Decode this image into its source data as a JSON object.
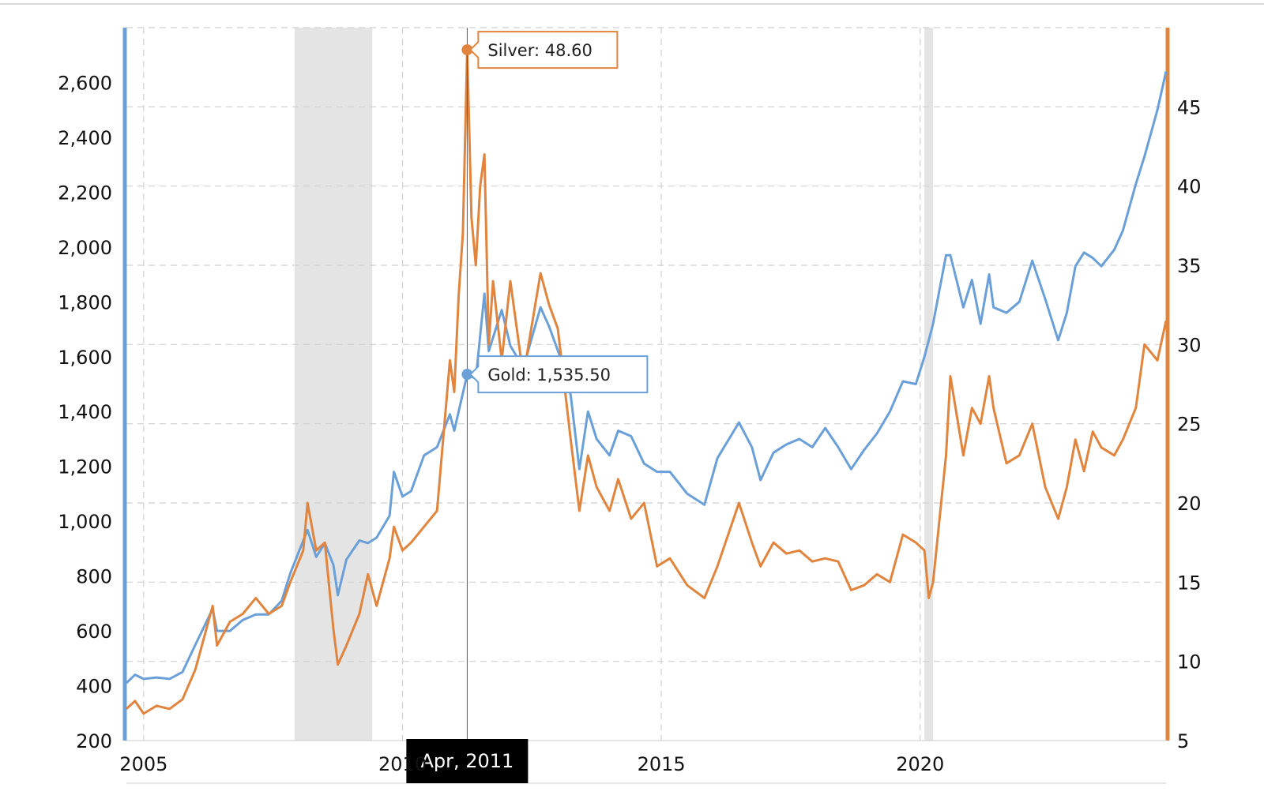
{
  "chart_data": {
    "type": "line",
    "title": "",
    "x_axis": {
      "tick_labels": [
        "2005",
        "2010",
        "2015",
        "2020"
      ],
      "range": [
        "2004-09",
        "2024-10"
      ]
    },
    "y_axis_left": {
      "series": "Gold",
      "range": [
        200,
        2800
      ],
      "ticks": [
        200,
        400,
        600,
        800,
        1000,
        1200,
        1400,
        1600,
        1800,
        2000,
        2200,
        2400,
        2600
      ],
      "tick_labels": [
        "200",
        "400",
        "600",
        "800",
        "1,000",
        "1,200",
        "1,400",
        "1,600",
        "1,800",
        "2,000",
        "2,200",
        "2,400",
        "2,600"
      ]
    },
    "y_axis_right": {
      "series": "Silver",
      "range": [
        5,
        50
      ],
      "ticks": [
        5,
        10,
        15,
        20,
        25,
        30,
        35,
        40,
        45
      ],
      "tick_labels": [
        "5",
        "10",
        "15",
        "20",
        "25",
        "30",
        "35",
        "40",
        "45"
      ]
    },
    "grid": true,
    "recession_shading": [
      {
        "start": "2007-12",
        "end": "2009-06"
      },
      {
        "start": "2020-02",
        "end": "2020-04"
      }
    ],
    "colors": {
      "gold": "#6a9fd8",
      "silver": "#e0843e",
      "shading": "#e4e4e4",
      "grid": "#d0d0d0"
    },
    "crosshair": {
      "date": "2011-04",
      "label": "Apr, 2011",
      "tooltips": [
        {
          "series": "Silver",
          "text": "Silver: 48.60",
          "value": 48.6
        },
        {
          "series": "Gold",
          "text": "Gold: 1,535.50",
          "value": 1535.5
        }
      ]
    },
    "series": [
      {
        "name": "Gold",
        "axis": "left",
        "points": [
          [
            "2004-09",
            410
          ],
          [
            "2004-11",
            440
          ],
          [
            "2005-01",
            425
          ],
          [
            "2005-04",
            430
          ],
          [
            "2005-07",
            425
          ],
          [
            "2005-10",
            450
          ],
          [
            "2006-01",
            550
          ],
          [
            "2006-05",
            680
          ],
          [
            "2006-06",
            600
          ],
          [
            "2006-09",
            600
          ],
          [
            "2006-12",
            640
          ],
          [
            "2007-03",
            660
          ],
          [
            "2007-06",
            660
          ],
          [
            "2007-09",
            710
          ],
          [
            "2007-11",
            810
          ],
          [
            "2008-02",
            930
          ],
          [
            "2008-03",
            968
          ],
          [
            "2008-05",
            870
          ],
          [
            "2008-07",
            920
          ],
          [
            "2008-09",
            840
          ],
          [
            "2008-10",
            730
          ],
          [
            "2008-12",
            860
          ],
          [
            "2009-03",
            930
          ],
          [
            "2009-05",
            920
          ],
          [
            "2009-07",
            940
          ],
          [
            "2009-10",
            1020
          ],
          [
            "2009-11",
            1180
          ],
          [
            "2010-01",
            1090
          ],
          [
            "2010-03",
            1110
          ],
          [
            "2010-06",
            1240
          ],
          [
            "2010-09",
            1270
          ],
          [
            "2010-12",
            1390
          ],
          [
            "2011-01",
            1330
          ],
          [
            "2011-04",
            1535.5
          ],
          [
            "2011-06",
            1520
          ],
          [
            "2011-08",
            1830
          ],
          [
            "2011-09",
            1620
          ],
          [
            "2011-12",
            1770
          ],
          [
            "2012-02",
            1640
          ],
          [
            "2012-05",
            1560
          ],
          [
            "2012-09",
            1780
          ],
          [
            "2012-11",
            1710
          ],
          [
            "2013-02",
            1580
          ],
          [
            "2013-04",
            1460
          ],
          [
            "2013-06",
            1190
          ],
          [
            "2013-08",
            1400
          ],
          [
            "2013-10",
            1300
          ],
          [
            "2014-01",
            1240
          ],
          [
            "2014-03",
            1330
          ],
          [
            "2014-06",
            1310
          ],
          [
            "2014-09",
            1210
          ],
          [
            "2014-12",
            1180
          ],
          [
            "2015-03",
            1180
          ],
          [
            "2015-07",
            1100
          ],
          [
            "2015-11",
            1060
          ],
          [
            "2016-02",
            1230
          ],
          [
            "2016-07",
            1360
          ],
          [
            "2016-10",
            1270
          ],
          [
            "2016-12",
            1150
          ],
          [
            "2017-03",
            1250
          ],
          [
            "2017-06",
            1280
          ],
          [
            "2017-09",
            1300
          ],
          [
            "2017-12",
            1270
          ],
          [
            "2018-03",
            1340
          ],
          [
            "2018-06",
            1270
          ],
          [
            "2018-09",
            1190
          ],
          [
            "2018-12",
            1260
          ],
          [
            "2019-03",
            1320
          ],
          [
            "2019-06",
            1400
          ],
          [
            "2019-09",
            1510
          ],
          [
            "2019-12",
            1500
          ],
          [
            "2020-02",
            1600
          ],
          [
            "2020-04",
            1720
          ],
          [
            "2020-07",
            1970
          ],
          [
            "2020-08",
            1970
          ],
          [
            "2020-11",
            1780
          ],
          [
            "2021-01",
            1880
          ],
          [
            "2021-03",
            1720
          ],
          [
            "2021-05",
            1900
          ],
          [
            "2021-06",
            1780
          ],
          [
            "2021-09",
            1760
          ],
          [
            "2021-12",
            1800
          ],
          [
            "2022-03",
            1950
          ],
          [
            "2022-06",
            1810
          ],
          [
            "2022-09",
            1660
          ],
          [
            "2022-11",
            1760
          ],
          [
            "2023-01",
            1930
          ],
          [
            "2023-03",
            1980
          ],
          [
            "2023-05",
            1960
          ],
          [
            "2023-07",
            1930
          ],
          [
            "2023-10",
            1990
          ],
          [
            "2023-12",
            2060
          ],
          [
            "2024-03",
            2230
          ],
          [
            "2024-05",
            2330
          ],
          [
            "2024-08",
            2500
          ],
          [
            "2024-10",
            2640
          ]
        ]
      },
      {
        "name": "Silver",
        "axis": "right",
        "points": [
          [
            "2004-09",
            7.0
          ],
          [
            "2004-11",
            7.5
          ],
          [
            "2005-01",
            6.7
          ],
          [
            "2005-04",
            7.2
          ],
          [
            "2005-07",
            7.0
          ],
          [
            "2005-10",
            7.6
          ],
          [
            "2006-01",
            9.5
          ],
          [
            "2006-05",
            13.5
          ],
          [
            "2006-06",
            11.0
          ],
          [
            "2006-09",
            12.5
          ],
          [
            "2006-12",
            13.0
          ],
          [
            "2007-03",
            14.0
          ],
          [
            "2007-06",
            13.0
          ],
          [
            "2007-09",
            13.5
          ],
          [
            "2007-11",
            15.0
          ],
          [
            "2008-02",
            17.0
          ],
          [
            "2008-03",
            20.0
          ],
          [
            "2008-05",
            17.0
          ],
          [
            "2008-07",
            17.5
          ],
          [
            "2008-09",
            12.0
          ],
          [
            "2008-10",
            9.8
          ],
          [
            "2008-12",
            11.0
          ],
          [
            "2009-03",
            13.0
          ],
          [
            "2009-05",
            15.5
          ],
          [
            "2009-07",
            13.5
          ],
          [
            "2009-10",
            16.5
          ],
          [
            "2009-11",
            18.5
          ],
          [
            "2010-01",
            17.0
          ],
          [
            "2010-03",
            17.5
          ],
          [
            "2010-06",
            18.5
          ],
          [
            "2010-09",
            19.5
          ],
          [
            "2010-12",
            29.0
          ],
          [
            "2011-01",
            27.0
          ],
          [
            "2011-02",
            33.0
          ],
          [
            "2011-03",
            37.0
          ],
          [
            "2011-04",
            48.6
          ],
          [
            "2011-05",
            38.0
          ],
          [
            "2011-06",
            35.0
          ],
          [
            "2011-07",
            40.0
          ],
          [
            "2011-08",
            42.0
          ],
          [
            "2011-09",
            30.0
          ],
          [
            "2011-10",
            34.0
          ],
          [
            "2011-12",
            29.0
          ],
          [
            "2012-02",
            34.0
          ],
          [
            "2012-05",
            28.0
          ],
          [
            "2012-09",
            34.5
          ],
          [
            "2012-11",
            32.5
          ],
          [
            "2013-01",
            31.0
          ],
          [
            "2013-04",
            24.0
          ],
          [
            "2013-06",
            19.5
          ],
          [
            "2013-08",
            23.0
          ],
          [
            "2013-10",
            21.0
          ],
          [
            "2014-01",
            19.5
          ],
          [
            "2014-03",
            21.5
          ],
          [
            "2014-06",
            19.0
          ],
          [
            "2014-09",
            20.0
          ],
          [
            "2014-12",
            16.0
          ],
          [
            "2015-03",
            16.5
          ],
          [
            "2015-07",
            14.8
          ],
          [
            "2015-11",
            14.0
          ],
          [
            "2016-02",
            16.0
          ],
          [
            "2016-07",
            20.0
          ],
          [
            "2016-10",
            17.5
          ],
          [
            "2016-12",
            16.0
          ],
          [
            "2017-03",
            17.5
          ],
          [
            "2017-06",
            16.8
          ],
          [
            "2017-09",
            17.0
          ],
          [
            "2017-12",
            16.3
          ],
          [
            "2018-03",
            16.5
          ],
          [
            "2018-06",
            16.3
          ],
          [
            "2018-09",
            14.5
          ],
          [
            "2018-12",
            14.8
          ],
          [
            "2019-03",
            15.5
          ],
          [
            "2019-06",
            15.0
          ],
          [
            "2019-09",
            18.0
          ],
          [
            "2019-12",
            17.5
          ],
          [
            "2020-02",
            17.0
          ],
          [
            "2020-03",
            14.0
          ],
          [
            "2020-04",
            15.0
          ],
          [
            "2020-07",
            23.0
          ],
          [
            "2020-08",
            28.0
          ],
          [
            "2020-11",
            23.0
          ],
          [
            "2021-01",
            26.0
          ],
          [
            "2021-03",
            25.0
          ],
          [
            "2021-05",
            28.0
          ],
          [
            "2021-06",
            26.0
          ],
          [
            "2021-09",
            22.5
          ],
          [
            "2021-12",
            23.0
          ],
          [
            "2022-03",
            25.0
          ],
          [
            "2022-06",
            21.0
          ],
          [
            "2022-09",
            19.0
          ],
          [
            "2022-11",
            21.0
          ],
          [
            "2023-01",
            24.0
          ],
          [
            "2023-03",
            22.0
          ],
          [
            "2023-05",
            24.5
          ],
          [
            "2023-07",
            23.5
          ],
          [
            "2023-10",
            23.0
          ],
          [
            "2023-12",
            24.0
          ],
          [
            "2024-03",
            26.0
          ],
          [
            "2024-05",
            30.0
          ],
          [
            "2024-08",
            29.0
          ],
          [
            "2024-10",
            31.5
          ]
        ]
      }
    ]
  }
}
